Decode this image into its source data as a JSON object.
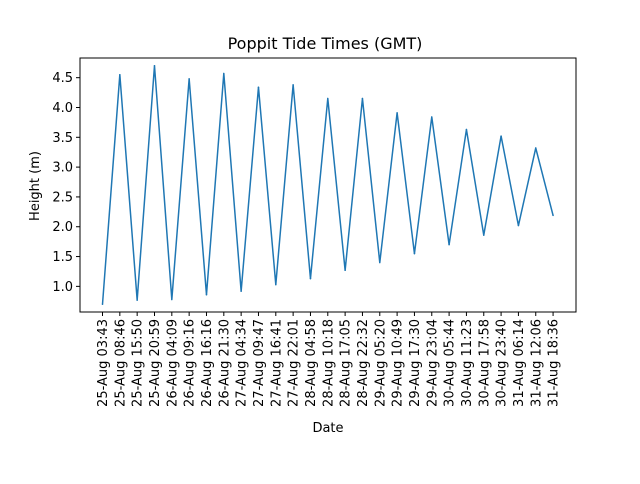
{
  "chart_data": {
    "type": "line",
    "title": "Poppit Tide Times (GMT)",
    "xlabel": "Date",
    "ylabel": "Height (m)",
    "line_color": "#1f77b4",
    "grid": false,
    "ylim": [
      0.57,
      4.83
    ],
    "y_ticks": [
      "1.0",
      "1.5",
      "2.0",
      "2.5",
      "3.0",
      "3.5",
      "4.0",
      "4.5"
    ],
    "categories": [
      "25-Aug 03:43",
      "25-Aug 08:46",
      "25-Aug 15:50",
      "25-Aug 20:59",
      "26-Aug 04:09",
      "26-Aug 09:16",
      "26-Aug 16:16",
      "26-Aug 21:30",
      "27-Aug 04:34",
      "27-Aug 09:47",
      "27-Aug 16:41",
      "27-Aug 22:01",
      "28-Aug 04:58",
      "28-Aug 10:18",
      "28-Aug 17:05",
      "28-Aug 22:32",
      "29-Aug 05:20",
      "29-Aug 10:49",
      "29-Aug 17:30",
      "29-Aug 23:04",
      "30-Aug 05:44",
      "30-Aug 11:23",
      "30-Aug 17:58",
      "30-Aug 23:40",
      "31-Aug 06:14",
      "31-Aug 12:06",
      "31-Aug 18:36"
    ],
    "values": [
      0.7,
      4.55,
      0.77,
      4.7,
      0.78,
      4.48,
      0.86,
      4.57,
      0.92,
      4.34,
      1.03,
      4.38,
      1.13,
      4.15,
      1.27,
      4.15,
      1.4,
      3.91,
      1.55,
      3.84,
      1.7,
      3.63,
      1.86,
      3.52,
      2.02,
      3.32,
      2.19
    ]
  }
}
